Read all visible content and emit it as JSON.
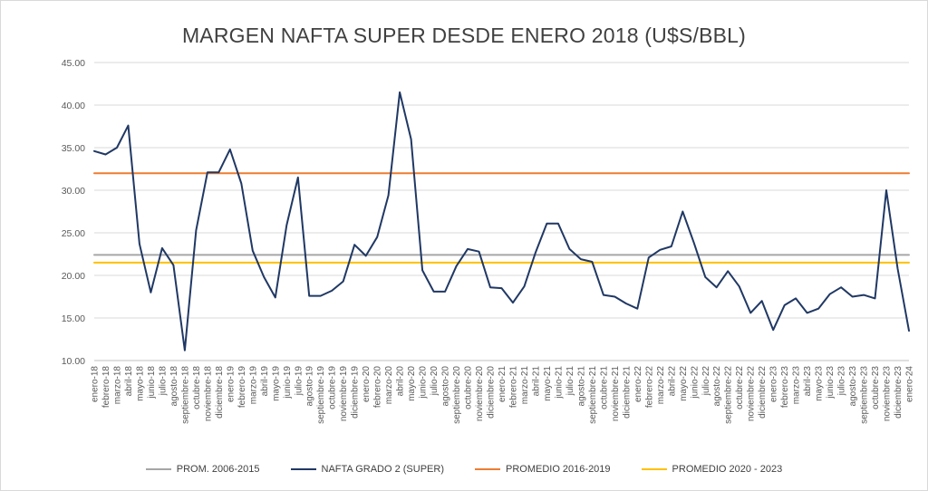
{
  "chart_data": {
    "type": "line",
    "title": "MARGEN NAFTA SUPER DESDE ENERO 2018 (U$S/BBL)",
    "xlabel": "",
    "ylabel": "",
    "ylim": [
      10,
      45
    ],
    "yticks": [
      "10.00",
      "15.00",
      "20.00",
      "25.00",
      "30.00",
      "35.00",
      "40.00",
      "45.00"
    ],
    "grid": true,
    "legend_position": "bottom",
    "categories": [
      "enero-18",
      "febrero-18",
      "marzo-18",
      "abril-18",
      "mayo-18",
      "junio-18",
      "julio-18",
      "agosto-18",
      "septiembre-18",
      "octubre-18",
      "noviembre-18",
      "diciembre-18",
      "enero-19",
      "febrero-19",
      "marzo-19",
      "abril-19",
      "mayo-19",
      "junio-19",
      "julio-19",
      "agosto-19",
      "septiembre-19",
      "octubre-19",
      "noviembre-19",
      "diciembre-19",
      "enero-20",
      "febrero-20",
      "marzo-20",
      "abril-20",
      "mayo-20",
      "junio-20",
      "julio-20",
      "agosto-20",
      "septiembre-20",
      "octubre-20",
      "noviembre-20",
      "diciembre-20",
      "enero-21",
      "febrero-21",
      "marzo-21",
      "abril-21",
      "mayo-21",
      "junio-21",
      "julio-21",
      "agosto-21",
      "septiembre-21",
      "octubre-21",
      "noviembre-21",
      "diciembre-21",
      "enero-22",
      "febrero-22",
      "marzo-22",
      "abril-22",
      "mayo-22",
      "junio-22",
      "julio-22",
      "agosto-22",
      "septiembre-22",
      "octubre-22",
      "noviembre-22",
      "diciembre-22",
      "enero-23",
      "febrero-23",
      "marzo-23",
      "abril-23",
      "mayo-23",
      "junio-23",
      "julio-23",
      "agosto-23",
      "septiembre-23",
      "octubre-23",
      "noviembre-23",
      "diciembre-23",
      "enero-24"
    ],
    "series": [
      {
        "name": "PROM. 2006-2015",
        "color": "#a6a6a6",
        "values": [
          22.4,
          22.4,
          22.4,
          22.4,
          22.4,
          22.4,
          22.4,
          22.4,
          22.4,
          22.4,
          22.4,
          22.4,
          22.4,
          22.4,
          22.4,
          22.4,
          22.4,
          22.4,
          22.4,
          22.4,
          22.4,
          22.4,
          22.4,
          22.4,
          22.4,
          22.4,
          22.4,
          22.4,
          22.4,
          22.4,
          22.4,
          22.4,
          22.4,
          22.4,
          22.4,
          22.4,
          22.4,
          22.4,
          22.4,
          22.4,
          22.4,
          22.4,
          22.4,
          22.4,
          22.4,
          22.4,
          22.4,
          22.4,
          22.4,
          22.4,
          22.4,
          22.4,
          22.4,
          22.4,
          22.4,
          22.4,
          22.4,
          22.4,
          22.4,
          22.4,
          22.4,
          22.4,
          22.4,
          22.4,
          22.4,
          22.4,
          22.4,
          22.4,
          22.4,
          22.4,
          22.4,
          22.4,
          22.4
        ]
      },
      {
        "name": "NAFTA GRADO 2 (SUPER)",
        "color": "#203864",
        "values": [
          34.6,
          34.2,
          35.0,
          37.6,
          23.7,
          18.0,
          23.2,
          21.2,
          11.2,
          25.3,
          32.1,
          32.1,
          34.8,
          30.8,
          22.9,
          19.8,
          17.4,
          25.9,
          31.5,
          17.6,
          17.6,
          18.2,
          19.3,
          23.6,
          22.3,
          24.5,
          29.4,
          41.5,
          36.0,
          20.6,
          18.1,
          18.1,
          21.1,
          23.1,
          22.8,
          18.6,
          18.5,
          16.8,
          18.7,
          22.7,
          26.1,
          26.1,
          23.1,
          21.9,
          21.6,
          17.7,
          17.5,
          16.7,
          16.1,
          22.1,
          23.0,
          23.4,
          27.5,
          23.8,
          19.8,
          18.6,
          20.5,
          18.7,
          15.6,
          17.0,
          13.6,
          16.5,
          17.3,
          15.6,
          16.1,
          17.8,
          18.6,
          17.5,
          17.7,
          17.3,
          30.0,
          20.8,
          13.5
        ]
      },
      {
        "name": "PROMEDIO 2016-2019",
        "color": "#ed7d31",
        "values": [
          32.0,
          32.0,
          32.0,
          32.0,
          32.0,
          32.0,
          32.0,
          32.0,
          32.0,
          32.0,
          32.0,
          32.0,
          32.0,
          32.0,
          32.0,
          32.0,
          32.0,
          32.0,
          32.0,
          32.0,
          32.0,
          32.0,
          32.0,
          32.0,
          32.0,
          32.0,
          32.0,
          32.0,
          32.0,
          32.0,
          32.0,
          32.0,
          32.0,
          32.0,
          32.0,
          32.0,
          32.0,
          32.0,
          32.0,
          32.0,
          32.0,
          32.0,
          32.0,
          32.0,
          32.0,
          32.0,
          32.0,
          32.0,
          32.0,
          32.0,
          32.0,
          32.0,
          32.0,
          32.0,
          32.0,
          32.0,
          32.0,
          32.0,
          32.0,
          32.0,
          32.0,
          32.0,
          32.0,
          32.0,
          32.0,
          32.0,
          32.0,
          32.0,
          32.0,
          32.0,
          32.0,
          32.0,
          32.0
        ]
      },
      {
        "name": "PROMEDIO 2020 - 2023",
        "color": "#ffc000",
        "values": [
          21.5,
          21.5,
          21.5,
          21.5,
          21.5,
          21.5,
          21.5,
          21.5,
          21.5,
          21.5,
          21.5,
          21.5,
          21.5,
          21.5,
          21.5,
          21.5,
          21.5,
          21.5,
          21.5,
          21.5,
          21.5,
          21.5,
          21.5,
          21.5,
          21.5,
          21.5,
          21.5,
          21.5,
          21.5,
          21.5,
          21.5,
          21.5,
          21.5,
          21.5,
          21.5,
          21.5,
          21.5,
          21.5,
          21.5,
          21.5,
          21.5,
          21.5,
          21.5,
          21.5,
          21.5,
          21.5,
          21.5,
          21.5,
          21.5,
          21.5,
          21.5,
          21.5,
          21.5,
          21.5,
          21.5,
          21.5,
          21.5,
          21.5,
          21.5,
          21.5,
          21.5,
          21.5,
          21.5,
          21.5,
          21.5,
          21.5,
          21.5,
          21.5,
          21.5,
          21.5,
          21.5,
          21.5,
          21.5
        ]
      }
    ],
    "draw_order": [
      "PROM. 2006-2015",
      "PROMEDIO 2016-2019",
      "PROMEDIO 2020 - 2023",
      "NAFTA GRADO 2 (SUPER)"
    ],
    "colors": {
      "gridline": "#d9d9d9",
      "axis": "#bfbfbf"
    }
  },
  "legend": [
    {
      "label": "PROM. 2006-2015",
      "color": "#a6a6a6"
    },
    {
      "label": "NAFTA GRADO 2 (SUPER)",
      "color": "#203864"
    },
    {
      "label": "PROMEDIO 2016-2019",
      "color": "#ed7d31"
    },
    {
      "label": "PROMEDIO 2020 - 2023",
      "color": "#ffc000"
    }
  ]
}
